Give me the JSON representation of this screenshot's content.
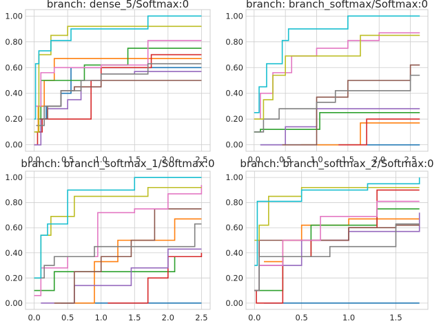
{
  "chart_data": [
    {
      "type": "line",
      "title": "branch: dense_5/Softmax:0",
      "xlim": [
        -0.13,
        2.63
      ],
      "ylim": [
        -0.05,
        1.05
      ],
      "xticks": [
        "0.0",
        "0.5",
        "1.0",
        "1.5",
        "2.0",
        "2.5"
      ],
      "yticks": [
        "0.00",
        "0.20",
        "0.40",
        "0.60",
        "0.80",
        "1.00"
      ],
      "grid": true,
      "series": [
        {
          "color": "#1f77b4",
          "x": [
            0.05,
            0.18,
            0.4,
            0.55,
            0.8,
            1.0,
            1.5,
            2.5
          ],
          "y": [
            0.2,
            0.3,
            0.4,
            0.6,
            0.6,
            0.6,
            0.6,
            0.6
          ]
        },
        {
          "color": "#ff7f0e",
          "x": [
            0.02,
            0.06,
            0.15,
            0.3,
            1.0,
            1.5,
            2.5
          ],
          "y": [
            0.1,
            0.3,
            0.5,
            0.67,
            0.67,
            0.67,
            0.67
          ]
        },
        {
          "color": "#2ca02c",
          "x": [
            0.03,
            0.1,
            0.3,
            0.75,
            1.0,
            1.4,
            2.5
          ],
          "y": [
            0.1,
            0.5,
            0.5,
            0.62,
            0.62,
            0.75,
            0.75
          ]
        },
        {
          "color": "#d62728",
          "x": [
            0.0,
            0.05,
            0.12,
            0.85,
            1.0,
            1.5,
            1.75,
            2.5
          ],
          "y": [
            0.0,
            0.1,
            0.2,
            0.5,
            0.6,
            0.6,
            0.7,
            0.7
          ]
        },
        {
          "color": "#9467bd",
          "x": [
            0.0,
            0.1,
            0.2,
            0.5,
            0.7,
            1.0,
            1.5,
            2.5
          ],
          "y": [
            0.0,
            0.2,
            0.28,
            0.35,
            0.45,
            0.55,
            0.57,
            0.57
          ]
        },
        {
          "color": "#8c564b",
          "x": [
            0.05,
            0.2,
            0.4,
            0.6,
            1.0,
            1.5,
            2.5
          ],
          "y": [
            0.2,
            0.3,
            0.42,
            0.45,
            0.5,
            0.5,
            0.5
          ]
        },
        {
          "color": "#e377c2",
          "x": [
            0.02,
            0.1,
            0.3,
            0.7,
            1.0,
            1.7,
            2.5
          ],
          "y": [
            0.3,
            0.56,
            0.6,
            0.6,
            0.62,
            0.81,
            0.81
          ]
        },
        {
          "color": "#7f7f7f",
          "x": [
            0.03,
            0.15,
            0.4,
            0.7,
            1.0,
            1.7,
            2.5
          ],
          "y": [
            0.15,
            0.3,
            0.42,
            0.5,
            0.55,
            0.63,
            0.63
          ]
        },
        {
          "color": "#bcbd22",
          "x": [
            0.0,
            0.07,
            0.25,
            0.5,
            1.0,
            2.0,
            2.5
          ],
          "y": [
            0.1,
            0.7,
            0.85,
            0.92,
            0.92,
            0.92,
            0.92
          ]
        },
        {
          "color": "#17becf",
          "x": [
            0.0,
            0.02,
            0.07,
            0.25,
            0.55,
            1.7,
            2.5
          ],
          "y": [
            0.2,
            0.63,
            0.73,
            0.81,
            0.9,
            1.0,
            1.0
          ]
        }
      ]
    },
    {
      "type": "line",
      "title": "branch: branch_softmax/Softmax:0",
      "xlim": [
        -0.13,
        2.78
      ],
      "ylim": [
        -0.05,
        1.05
      ],
      "xticks": [
        "0.0",
        "0.5",
        "1.0",
        "1.5",
        "2.0",
        "2.5"
      ],
      "yticks": [
        "0.00",
        "0.20",
        "0.40",
        "0.60",
        "0.80",
        "1.00"
      ],
      "grid": true,
      "series": [
        {
          "color": "#1f77b4",
          "x": [
            0.1,
            1.0,
            2.0,
            2.65
          ],
          "y": [
            0.0,
            0.0,
            0.0,
            0.0
          ]
        },
        {
          "color": "#ff7f0e",
          "x": [
            0.75,
            1.55,
            1.7,
            2.65
          ],
          "y": [
            0.0,
            0.0,
            0.17,
            0.17
          ]
        },
        {
          "color": "#2ca02c",
          "x": [
            0.0,
            0.1,
            0.5,
            1.05,
            2.0,
            2.65
          ],
          "y": [
            0.1,
            0.12,
            0.12,
            0.25,
            0.25,
            0.25
          ]
        },
        {
          "color": "#d62728",
          "x": [
            1.35,
            1.7,
            1.8,
            2.65
          ],
          "y": [
            0.0,
            0.0,
            0.2,
            0.2
          ]
        },
        {
          "color": "#9467bd",
          "x": [
            0.1,
            0.4,
            0.5,
            1.0,
            2.0,
            2.65
          ],
          "y": [
            0.0,
            0.0,
            0.14,
            0.28,
            0.28,
            0.28
          ]
        },
        {
          "color": "#8c564b",
          "x": [
            0.45,
            1.0,
            1.1,
            1.5,
            2.5,
            2.65
          ],
          "y": [
            0.0,
            0.37,
            0.37,
            0.5,
            0.62,
            0.62
          ]
        },
        {
          "color": "#e377c2",
          "x": [
            0.0,
            0.1,
            0.3,
            0.6,
            1.0,
            1.5,
            2.0,
            2.65
          ],
          "y": [
            0.2,
            0.4,
            0.56,
            0.69,
            0.75,
            0.81,
            0.87,
            0.87
          ]
        },
        {
          "color": "#7f7f7f",
          "x": [
            0.0,
            0.15,
            0.4,
            1.0,
            1.3,
            2.5,
            2.65
          ],
          "y": [
            0.1,
            0.2,
            0.28,
            0.33,
            0.42,
            0.54,
            0.54
          ]
        },
        {
          "color": "#bcbd22",
          "x": [
            0.0,
            0.15,
            0.3,
            0.5,
            1.0,
            1.7,
            2.65
          ],
          "y": [
            0.2,
            0.35,
            0.54,
            0.69,
            0.69,
            0.85,
            0.85
          ]
        },
        {
          "color": "#17becf",
          "x": [
            0.0,
            0.08,
            0.2,
            0.45,
            0.55,
            1.0,
            1.5,
            2.0,
            2.65
          ],
          "y": [
            0.25,
            0.45,
            0.63,
            0.81,
            0.9,
            0.9,
            1.0,
            1.0,
            1.0
          ]
        }
      ]
    },
    {
      "type": "line",
      "title": "branch: branch_softmax_1/Softmax:0",
      "xlim": [
        -0.13,
        2.63
      ],
      "ylim": [
        -0.05,
        1.05
      ],
      "xticks": [
        "0.0",
        "0.5",
        "1.0",
        "1.5",
        "2.0",
        "2.5"
      ],
      "yticks": [
        "0.00",
        "0.20",
        "0.40",
        "0.60",
        "0.80",
        "1.00"
      ],
      "grid": true,
      "series": [
        {
          "color": "#1f77b4",
          "x": [
            0.4,
            1.0,
            2.0,
            2.5
          ],
          "y": [
            0.0,
            0.0,
            0.0,
            0.0
          ]
        },
        {
          "color": "#ff7f0e",
          "x": [
            0.3,
            0.9,
            1.25,
            1.7,
            2.1,
            2.5
          ],
          "y": [
            0.0,
            0.33,
            0.5,
            0.5,
            0.67,
            0.67
          ]
        },
        {
          "color": "#2ca02c",
          "x": [
            0.0,
            0.05,
            0.3,
            0.7,
            1.3,
            2.1,
            2.5
          ],
          "y": [
            0.1,
            0.1,
            0.25,
            0.25,
            0.25,
            0.37,
            0.37
          ]
        },
        {
          "color": "#d62728",
          "x": [
            1.1,
            1.5,
            1.7,
            2.0,
            2.5
          ],
          "y": [
            0.0,
            0.0,
            0.2,
            0.37,
            0.4
          ]
        },
        {
          "color": "#9467bd",
          "x": [
            0.1,
            0.3,
            0.6,
            1.0,
            1.45,
            2.0,
            2.5
          ],
          "y": [
            0.0,
            0.0,
            0.14,
            0.14,
            0.28,
            0.43,
            0.43
          ]
        },
        {
          "color": "#8c564b",
          "x": [
            0.3,
            0.6,
            1.0,
            1.45,
            1.8,
            2.5
          ],
          "y": [
            0.0,
            0.25,
            0.37,
            0.5,
            0.75,
            0.75
          ]
        },
        {
          "color": "#e377c2",
          "x": [
            0.0,
            0.1,
            0.5,
            0.95,
            1.5,
            2.0,
            2.5
          ],
          "y": [
            0.06,
            0.28,
            0.37,
            0.72,
            0.75,
            0.87,
            0.94
          ]
        },
        {
          "color": "#7f7f7f",
          "x": [
            0.0,
            0.15,
            0.3,
            0.9,
            1.45,
            2.4,
            2.5
          ],
          "y": [
            0.2,
            0.3,
            0.37,
            0.45,
            0.45,
            0.63,
            0.63
          ]
        },
        {
          "color": "#bcbd22",
          "x": [
            0.0,
            0.1,
            0.25,
            0.6,
            1.0,
            1.7,
            2.5
          ],
          "y": [
            0.2,
            0.54,
            0.69,
            0.85,
            0.85,
            0.92,
            0.92
          ]
        },
        {
          "color": "#17becf",
          "x": [
            0.0,
            0.1,
            0.2,
            0.5,
            1.0,
            1.5,
            2.5
          ],
          "y": [
            0.2,
            0.54,
            0.63,
            0.9,
            0.9,
            1.0,
            1.0
          ]
        }
      ]
    },
    {
      "type": "line",
      "title": "branch: branch_softmax_2/Softmax:0",
      "xlim": [
        -0.09,
        1.84
      ],
      "ylim": [
        -0.05,
        1.05
      ],
      "xticks": [
        "0.0",
        "0.5",
        "1.0",
        "1.5"
      ],
      "yticks": [
        "0.00",
        "0.20",
        "0.40",
        "0.60",
        "0.80",
        "1.00"
      ],
      "grid": true,
      "series": [
        {
          "color": "#1f77b4",
          "x": [
            0.1,
            1.0,
            1.75
          ],
          "y": [
            0.0,
            0.0,
            0.0
          ]
        },
        {
          "color": "#ff7f0e",
          "x": [
            0.1,
            0.3,
            0.5,
            1.0,
            1.75
          ],
          "y": [
            0.33,
            0.5,
            0.62,
            0.67,
            0.67
          ]
        },
        {
          "color": "#2ca02c",
          "x": [
            0.0,
            0.3,
            0.6,
            1.0,
            1.3,
            1.75
          ],
          "y": [
            0.1,
            0.37,
            0.62,
            0.62,
            0.75,
            0.75
          ]
        },
        {
          "color": "#d62728",
          "x": [
            0.0,
            0.02,
            0.3,
            0.6,
            1.0,
            1.3,
            1.75
          ],
          "y": [
            0.1,
            0.0,
            0.37,
            0.5,
            0.6,
            0.9,
            0.9
          ]
        },
        {
          "color": "#9467bd",
          "x": [
            0.0,
            0.05,
            0.5,
            1.0,
            1.5,
            1.75
          ],
          "y": [
            0.1,
            0.3,
            0.5,
            0.57,
            0.57,
            0.72
          ]
        },
        {
          "color": "#8c564b",
          "x": [
            0.0,
            0.05,
            0.3,
            0.7,
            1.0,
            1.5,
            1.75
          ],
          "y": [
            0.1,
            0.5,
            0.5,
            0.5,
            0.6,
            0.62,
            0.62
          ]
        },
        {
          "color": "#e377c2",
          "x": [
            0.05,
            0.3,
            0.7,
            1.3,
            1.75
          ],
          "y": [
            0.3,
            0.5,
            0.69,
            0.81,
            0.81
          ]
        },
        {
          "color": "#7f7f7f",
          "x": [
            0.0,
            0.05,
            0.3,
            0.8,
            1.0,
            1.5,
            1.75
          ],
          "y": [
            0.1,
            0.37,
            0.37,
            0.45,
            0.45,
            0.63,
            0.63
          ]
        },
        {
          "color": "#bcbd22",
          "x": [
            0.0,
            0.05,
            0.15,
            0.5,
            1.0,
            1.75
          ],
          "y": [
            0.5,
            0.62,
            0.85,
            0.92,
            0.92,
            0.92
          ]
        },
        {
          "color": "#17becf",
          "x": [
            0.0,
            0.03,
            0.1,
            0.5,
            1.2,
            1.75
          ],
          "y": [
            0.3,
            0.81,
            0.81,
            0.9,
            0.95,
            1.0
          ]
        }
      ]
    }
  ]
}
